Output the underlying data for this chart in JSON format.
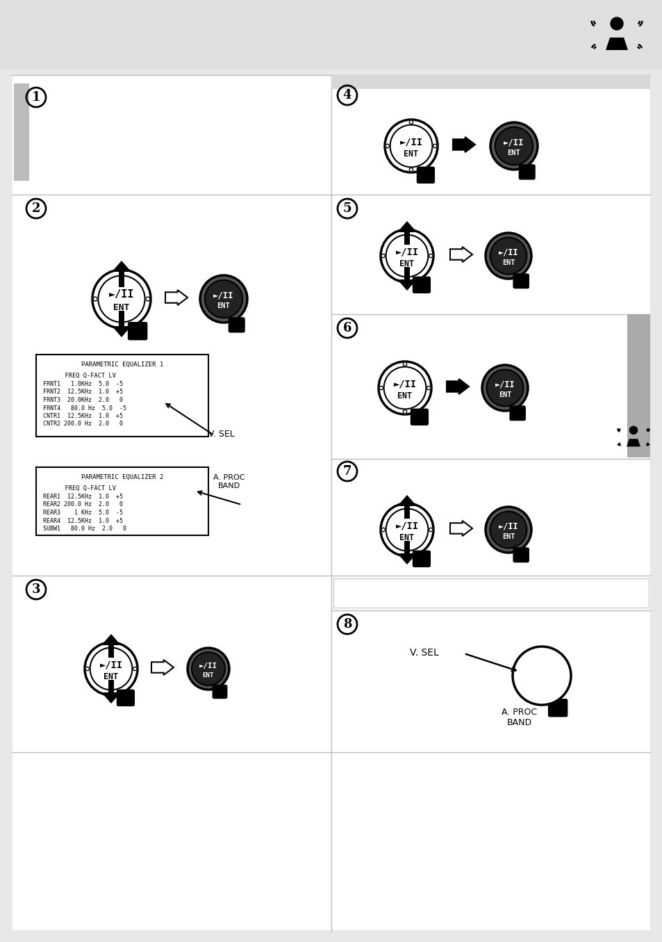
{
  "bg_color": "#e8e8e8",
  "white": "#ffffff",
  "black": "#000000",
  "eq1_title": "PARAMETRIC EQUALIZER 1",
  "eq1_header": "      FREQ Q-FACT LV",
  "eq1_rows": [
    "FRNT1   1.0KHz  5.0  -5",
    "FRNT2  12.5KHz  1.0  +5",
    "FRNT3  20.0KHz  2.0   0",
    "FRNT4   80.0 Hz  5.0  -5",
    "CNTR1  12.5KHz  1.0  +5",
    "CNTR2 200.0 Hz  2.0   0"
  ],
  "eq2_title": "PARAMETRIC EQUALIZER 2",
  "eq2_header": "      FREQ Q-FACT LV",
  "eq2_rows": [
    "REAR1  12.5KHz  1.0  +5",
    "REAR2 200.0 Hz  2.0   0",
    "REAR3    1 KHz  5.0  -5",
    "REAR4  12.5KHz  1.0  +5",
    "SUBW1   80.0 Hz  2.0   0"
  ],
  "step_numbers": [
    "1",
    "2",
    "3",
    "4",
    "5",
    "6",
    "7",
    "8"
  ]
}
